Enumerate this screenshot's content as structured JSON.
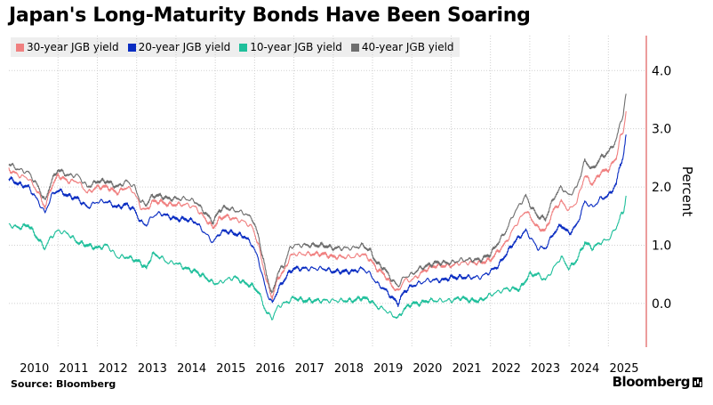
{
  "colors": {
    "series": [
      "#f08080",
      "#0a2dc2",
      "#1fbf9b",
      "#6e6e6e"
    ],
    "axis_line": "#e05a5a",
    "grid": "#cfcfcf"
  },
  "footer": {
    "source": "Source: Bloomberg",
    "brand": "Bloomberg",
    "brand_icon": "bloomberg-terminal-icon"
  },
  "chart_data": {
    "type": "line",
    "title": "Japan's Long-Maturity Bonds Have Been Soaring",
    "ylabel": "Percent",
    "xlabel": "",
    "xlim": [
      2009.75,
      2025.92
    ],
    "ylim": [
      -0.75,
      4.6
    ],
    "yticks": [
      0.0,
      1.0,
      2.0,
      3.0,
      4.0
    ],
    "ytick_labels": [
      "0.0",
      "1.0",
      "2.0",
      "3.0",
      "4.0"
    ],
    "xticks": [
      "2010",
      "2011",
      "2012",
      "2013",
      "2014",
      "2015",
      "2016",
      "2017",
      "2018",
      "2019",
      "2020",
      "2021",
      "2022",
      "2023",
      "2024",
      "2025"
    ],
    "grid": true,
    "legend_position": "top-left",
    "series": [
      {
        "name": "30-year JGB yield",
        "x": [
          2009.75,
          2010.0,
          2010.25,
          2010.5,
          2010.67,
          2010.83,
          2011.0,
          2011.25,
          2011.5,
          2011.75,
          2012.0,
          2012.25,
          2012.5,
          2012.75,
          2012.95,
          2013.1,
          2013.25,
          2013.4,
          2013.6,
          2013.8,
          2014.0,
          2014.25,
          2014.5,
          2014.75,
          2014.95,
          2015.1,
          2015.25,
          2015.5,
          2015.75,
          2015.95,
          2016.1,
          2016.3,
          2016.45,
          2016.6,
          2016.75,
          2016.9,
          2017.0,
          2017.25,
          2017.5,
          2017.75,
          2018.0,
          2018.25,
          2018.5,
          2018.75,
          2018.95,
          2019.1,
          2019.3,
          2019.5,
          2019.65,
          2019.8,
          2020.0,
          2020.2,
          2020.4,
          2020.6,
          2020.8,
          2021.0,
          2021.25,
          2021.5,
          2021.75,
          2022.0,
          2022.2,
          2022.4,
          2022.6,
          2022.75,
          2022.9,
          2023.0,
          2023.2,
          2023.4,
          2023.6,
          2023.8,
          2024.0,
          2024.2,
          2024.4,
          2024.6,
          2024.8,
          2025.0,
          2025.2,
          2025.3,
          2025.38,
          2025.45
        ],
        "values": [
          2.3,
          2.2,
          2.15,
          1.9,
          1.65,
          2.0,
          2.2,
          2.1,
          2.1,
          1.9,
          2.0,
          2.0,
          1.9,
          2.0,
          1.9,
          1.65,
          1.6,
          1.75,
          1.75,
          1.7,
          1.7,
          1.7,
          1.65,
          1.45,
          1.3,
          1.45,
          1.5,
          1.45,
          1.4,
          1.3,
          1.0,
          0.4,
          0.1,
          0.45,
          0.55,
          0.8,
          0.85,
          0.85,
          0.85,
          0.85,
          0.8,
          0.8,
          0.8,
          0.85,
          0.75,
          0.6,
          0.5,
          0.3,
          0.2,
          0.4,
          0.4,
          0.5,
          0.6,
          0.65,
          0.65,
          0.65,
          0.7,
          0.7,
          0.7,
          0.75,
          0.9,
          1.05,
          1.3,
          1.45,
          1.6,
          1.5,
          1.3,
          1.25,
          1.6,
          1.75,
          1.6,
          1.75,
          2.2,
          2.05,
          2.25,
          2.3,
          2.5,
          2.85,
          2.95,
          3.3
        ]
      },
      {
        "name": "20-year JGB yield",
        "x": [
          2009.75,
          2010.0,
          2010.25,
          2010.5,
          2010.67,
          2010.83,
          2011.0,
          2011.25,
          2011.5,
          2011.75,
          2012.0,
          2012.25,
          2012.5,
          2012.75,
          2012.95,
          2013.1,
          2013.25,
          2013.4,
          2013.6,
          2013.8,
          2014.0,
          2014.25,
          2014.5,
          2014.75,
          2014.95,
          2015.1,
          2015.25,
          2015.5,
          2015.75,
          2015.95,
          2016.1,
          2016.3,
          2016.45,
          2016.6,
          2016.75,
          2016.9,
          2017.0,
          2017.25,
          2017.5,
          2017.75,
          2018.0,
          2018.25,
          2018.5,
          2018.75,
          2018.95,
          2019.1,
          2019.3,
          2019.5,
          2019.65,
          2019.8,
          2020.0,
          2020.2,
          2020.4,
          2020.6,
          2020.8,
          2021.0,
          2021.25,
          2021.5,
          2021.75,
          2022.0,
          2022.2,
          2022.4,
          2022.6,
          2022.75,
          2022.9,
          2023.0,
          2023.2,
          2023.4,
          2023.6,
          2023.8,
          2024.0,
          2024.2,
          2024.4,
          2024.6,
          2024.8,
          2025.0,
          2025.2,
          2025.3,
          2025.38,
          2025.45
        ],
        "values": [
          2.15,
          2.05,
          2.0,
          1.75,
          1.55,
          1.85,
          1.95,
          1.85,
          1.8,
          1.65,
          1.75,
          1.75,
          1.65,
          1.7,
          1.6,
          1.4,
          1.35,
          1.5,
          1.55,
          1.5,
          1.45,
          1.45,
          1.4,
          1.2,
          1.05,
          1.2,
          1.25,
          1.2,
          1.15,
          1.0,
          0.75,
          0.2,
          0.0,
          0.25,
          0.4,
          0.55,
          0.6,
          0.6,
          0.6,
          0.6,
          0.55,
          0.55,
          0.55,
          0.6,
          0.5,
          0.35,
          0.25,
          0.1,
          0.0,
          0.2,
          0.3,
          0.35,
          0.4,
          0.4,
          0.4,
          0.45,
          0.45,
          0.45,
          0.45,
          0.55,
          0.65,
          0.85,
          1.05,
          1.15,
          1.25,
          1.15,
          0.95,
          0.95,
          1.2,
          1.35,
          1.2,
          1.35,
          1.75,
          1.65,
          1.8,
          1.85,
          2.05,
          2.4,
          2.5,
          2.9
        ]
      },
      {
        "name": "10-year JGB yield",
        "x": [
          2009.75,
          2010.0,
          2010.25,
          2010.5,
          2010.67,
          2010.83,
          2011.0,
          2011.25,
          2011.5,
          2011.75,
          2012.0,
          2012.25,
          2012.5,
          2012.75,
          2012.95,
          2013.1,
          2013.25,
          2013.4,
          2013.6,
          2013.8,
          2014.0,
          2014.25,
          2014.5,
          2014.75,
          2014.95,
          2015.1,
          2015.25,
          2015.5,
          2015.75,
          2015.95,
          2016.1,
          2016.3,
          2016.45,
          2016.6,
          2016.75,
          2016.9,
          2017.0,
          2017.25,
          2017.5,
          2017.75,
          2018.0,
          2018.25,
          2018.5,
          2018.75,
          2018.95,
          2019.1,
          2019.3,
          2019.5,
          2019.65,
          2019.8,
          2020.0,
          2020.2,
          2020.4,
          2020.6,
          2020.8,
          2021.0,
          2021.25,
          2021.5,
          2021.75,
          2022.0,
          2022.2,
          2022.4,
          2022.6,
          2022.75,
          2022.9,
          2023.0,
          2023.2,
          2023.4,
          2023.6,
          2023.8,
          2024.0,
          2024.2,
          2024.4,
          2024.6,
          2024.8,
          2025.0,
          2025.2,
          2025.3,
          2025.38,
          2025.45
        ],
        "values": [
          1.35,
          1.3,
          1.35,
          1.1,
          0.95,
          1.15,
          1.25,
          1.2,
          1.05,
          1.0,
          0.95,
          1.0,
          0.8,
          0.8,
          0.75,
          0.7,
          0.6,
          0.85,
          0.8,
          0.7,
          0.7,
          0.6,
          0.55,
          0.45,
          0.35,
          0.35,
          0.4,
          0.45,
          0.35,
          0.3,
          0.2,
          -0.15,
          -0.25,
          -0.05,
          0.0,
          0.05,
          0.1,
          0.05,
          0.05,
          0.05,
          0.05,
          0.05,
          0.05,
          0.1,
          0.05,
          -0.05,
          -0.1,
          -0.2,
          -0.25,
          -0.1,
          0.0,
          0.0,
          0.05,
          0.05,
          0.05,
          0.05,
          0.1,
          0.05,
          0.05,
          0.15,
          0.2,
          0.25,
          0.25,
          0.25,
          0.4,
          0.5,
          0.5,
          0.4,
          0.6,
          0.8,
          0.6,
          0.75,
          1.05,
          0.95,
          1.05,
          1.1,
          1.3,
          1.5,
          1.55,
          1.85
        ]
      },
      {
        "name": "40-year JGB yield",
        "x": [
          2009.75,
          2010.0,
          2010.25,
          2010.5,
          2010.67,
          2010.83,
          2011.0,
          2011.25,
          2011.5,
          2011.75,
          2012.0,
          2012.25,
          2012.5,
          2012.75,
          2012.95,
          2013.1,
          2013.25,
          2013.4,
          2013.6,
          2013.8,
          2014.0,
          2014.25,
          2014.5,
          2014.75,
          2014.95,
          2015.1,
          2015.25,
          2015.5,
          2015.75,
          2015.95,
          2016.1,
          2016.3,
          2016.45,
          2016.6,
          2016.75,
          2016.9,
          2017.0,
          2017.25,
          2017.5,
          2017.75,
          2018.0,
          2018.25,
          2018.5,
          2018.75,
          2018.95,
          2019.1,
          2019.3,
          2019.5,
          2019.65,
          2019.8,
          2020.0,
          2020.2,
          2020.4,
          2020.6,
          2020.8,
          2021.0,
          2021.25,
          2021.5,
          2021.75,
          2022.0,
          2022.2,
          2022.4,
          2022.6,
          2022.75,
          2022.9,
          2023.0,
          2023.2,
          2023.4,
          2023.6,
          2023.8,
          2024.0,
          2024.2,
          2024.4,
          2024.6,
          2024.8,
          2025.0,
          2025.2,
          2025.3,
          2025.38,
          2025.45
        ],
        "values": [
          2.4,
          2.3,
          2.25,
          2.0,
          1.75,
          2.1,
          2.3,
          2.2,
          2.2,
          2.0,
          2.1,
          2.1,
          2.0,
          2.1,
          2.0,
          1.75,
          1.7,
          1.85,
          1.85,
          1.8,
          1.8,
          1.8,
          1.75,
          1.55,
          1.4,
          1.6,
          1.65,
          1.6,
          1.55,
          1.45,
          1.15,
          0.5,
          0.15,
          0.55,
          0.65,
          0.95,
          1.0,
          1.0,
          1.0,
          1.0,
          0.95,
          0.95,
          0.95,
          1.0,
          0.9,
          0.7,
          0.6,
          0.4,
          0.3,
          0.45,
          0.5,
          0.6,
          0.65,
          0.7,
          0.7,
          0.7,
          0.75,
          0.75,
          0.75,
          0.85,
          1.05,
          1.25,
          1.55,
          1.7,
          1.85,
          1.7,
          1.5,
          1.45,
          1.8,
          2.0,
          1.85,
          2.0,
          2.45,
          2.3,
          2.5,
          2.6,
          2.8,
          3.1,
          3.25,
          3.6
        ]
      }
    ]
  }
}
